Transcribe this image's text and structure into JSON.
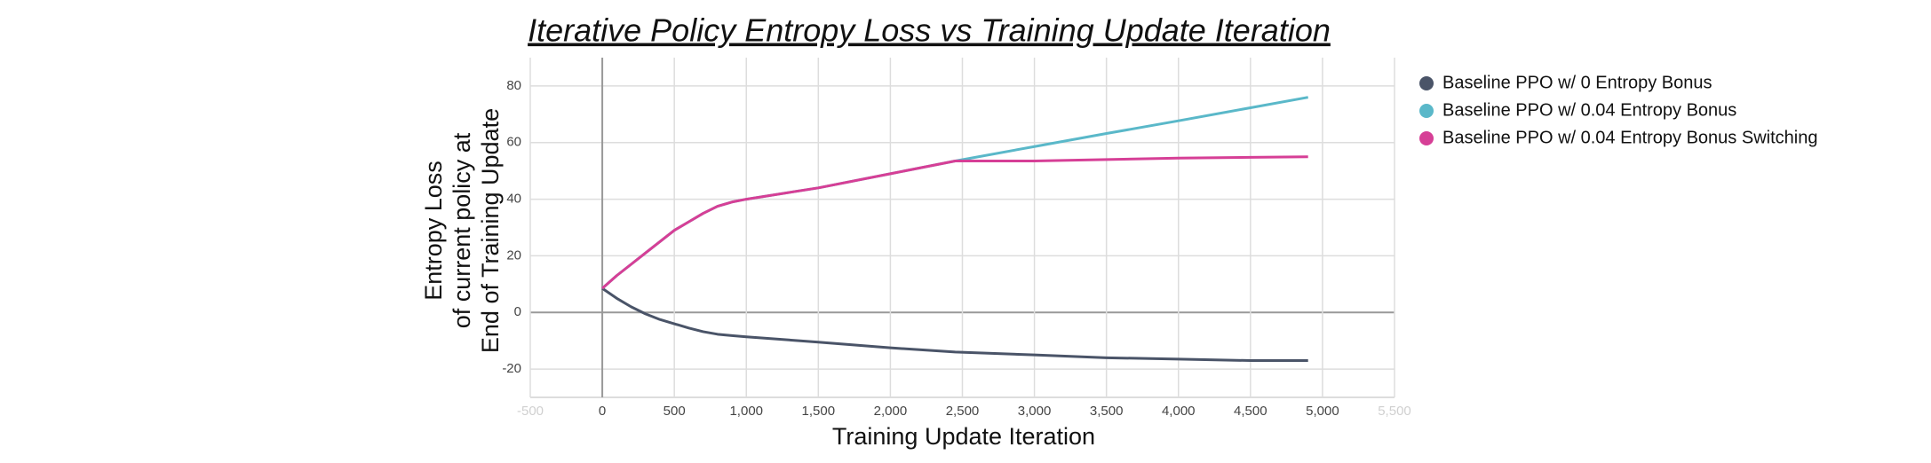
{
  "chart_data": {
    "type": "line",
    "title": "Iterative Policy Entropy Loss vs Training Update Iteration",
    "x_label": "Training Update Iteration",
    "y_label": [
      "Entropy Loss",
      "of current policy at",
      "End of Training Update"
    ],
    "x": [
      0,
      100,
      200,
      300,
      400,
      500,
      600,
      700,
      800,
      900,
      1000,
      1500,
      2000,
      2450,
      3000,
      3500,
      4000,
      4500,
      4900
    ],
    "series": [
      {
        "name": "Baseline PPO w/ 0 Entropy Bonus",
        "color": "#4a5468",
        "values": [
          8.5,
          5,
          2,
          -0.5,
          -2.5,
          -4,
          -5.5,
          -6.8,
          -7.7,
          -8.2,
          -8.6,
          -10.5,
          -12.5,
          -14,
          -15,
          -16,
          -16.5,
          -17,
          -17
        ]
      },
      {
        "name": "Baseline PPO w/ 0.04 Entropy Bonus",
        "color": "#5ab8c9",
        "values": [
          8.5,
          13,
          17,
          21,
          25,
          29,
          32,
          35,
          37.5,
          39,
          40,
          44,
          49,
          53.5,
          58.6,
          63.2,
          67.7,
          72.3,
          76
        ]
      },
      {
        "name": "Baseline PPO w/ 0.04 Entropy Bonus Switching",
        "color": "#d63f96",
        "values": [
          8.5,
          13,
          17,
          21,
          25,
          29,
          32,
          35,
          37.5,
          39,
          40,
          44,
          49,
          53.5,
          53.5,
          54,
          54.5,
          54.8,
          55
        ]
      }
    ],
    "xlim": [
      -500,
      5500
    ],
    "xticks": [
      {
        "value": -500,
        "label": "-500"
      },
      0,
      500,
      {
        "value": 1000,
        "label": "1,000"
      },
      {
        "value": 1500,
        "label": "1,500"
      },
      {
        "value": 2000,
        "label": "2,000"
      },
      {
        "value": 2500,
        "label": "2,500"
      },
      {
        "value": 3000,
        "label": "3,000"
      },
      {
        "value": 3500,
        "label": "3,500"
      },
      {
        "value": 4000,
        "label": "4,000"
      },
      {
        "value": 4500,
        "label": "4,500"
      },
      {
        "value": 5000,
        "label": "5,000"
      },
      {
        "value": 5500,
        "label": "5,500"
      }
    ],
    "ylim": [
      -30,
      90
    ],
    "yticks": [
      -20,
      0,
      20,
      40,
      60,
      80
    ],
    "grid": true,
    "legend": "right"
  }
}
